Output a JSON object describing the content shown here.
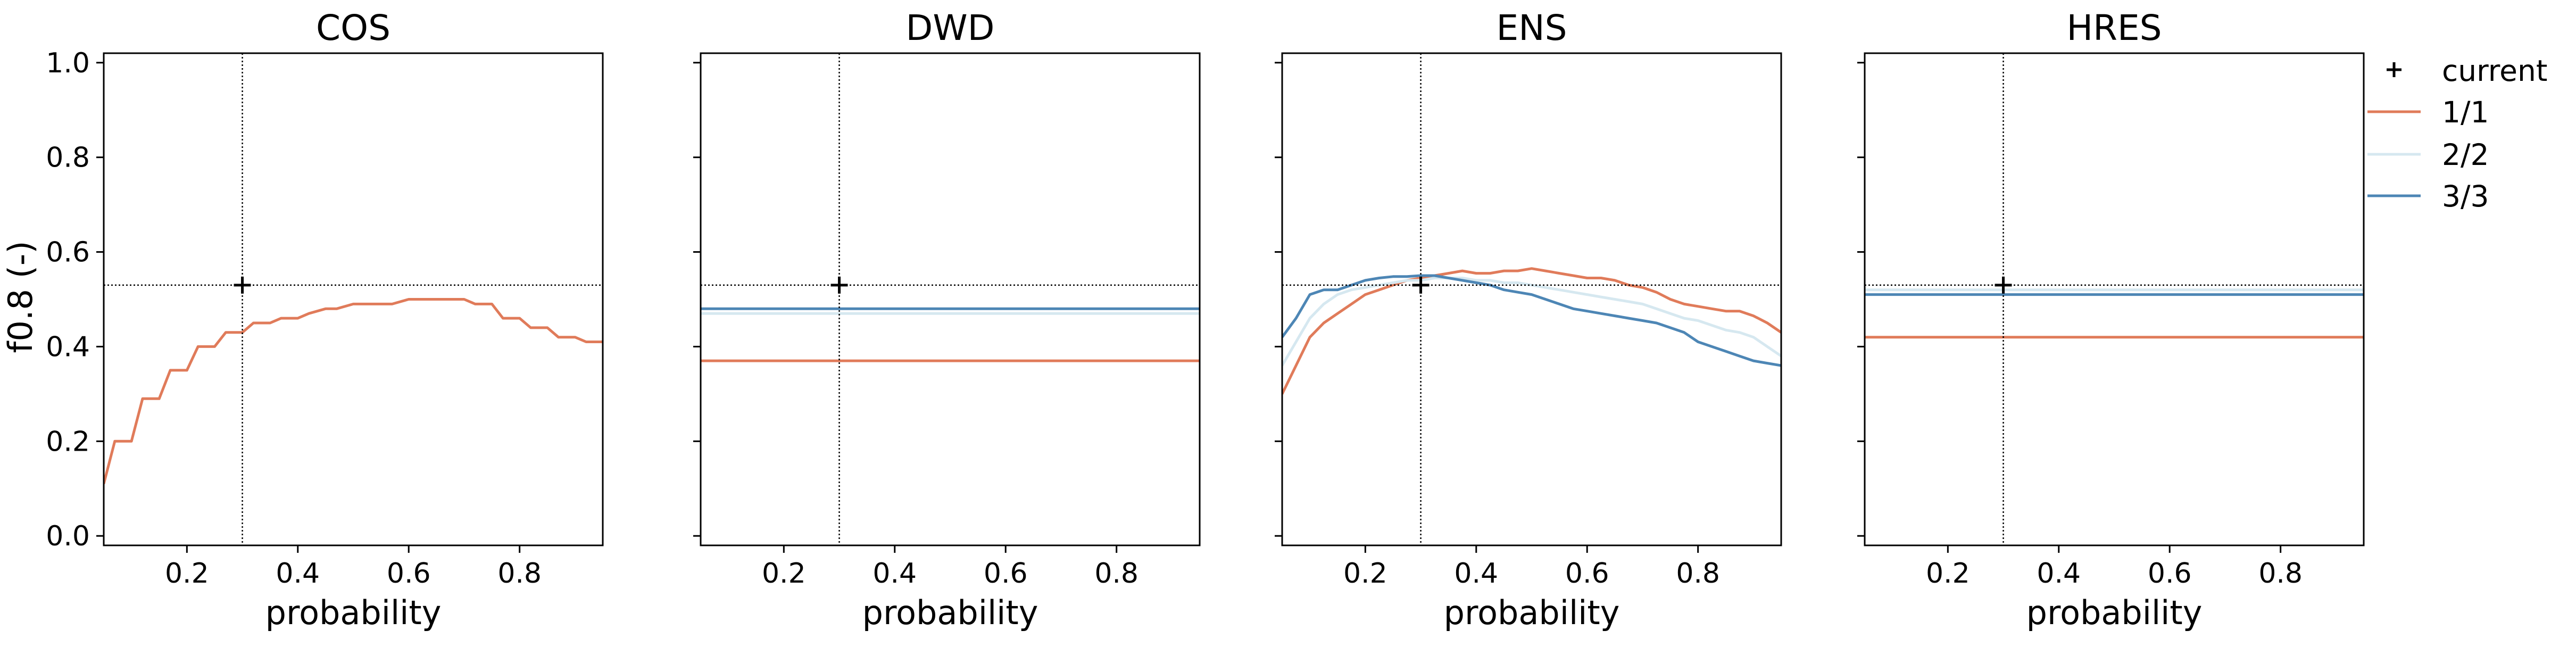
{
  "figure": {
    "ylabel": "f0.8 (-)",
    "xlabel": "probability",
    "legend": {
      "placement": "right-outside-top",
      "current_label": "current",
      "items": [
        {
          "label": "1/1",
          "color": "#e07b5a"
        },
        {
          "label": "2/2",
          "color": "#d6e8f0"
        },
        {
          "label": "3/3",
          "color": "#4d86b5"
        }
      ]
    }
  },
  "chart_data": [
    {
      "type": "line",
      "title": "COS",
      "xlabel": "probability",
      "ylabel": "f0.8 (-)",
      "xlim": [
        0.05,
        0.95
      ],
      "ylim": [
        -0.02,
        1.02
      ],
      "xticks": [
        "0.2",
        "0.4",
        "0.6",
        "0.8"
      ],
      "yticks": [
        "0.0",
        "0.2",
        "0.4",
        "0.6",
        "0.8",
        "1.0"
      ],
      "current": {
        "x": 0.3,
        "y": 0.53
      },
      "series": [
        {
          "name": "1/1",
          "color": "#e07b5a",
          "step": true,
          "x": [
            0.05,
            0.07,
            0.1,
            0.12,
            0.15,
            0.17,
            0.2,
            0.22,
            0.25,
            0.27,
            0.3,
            0.32,
            0.35,
            0.37,
            0.4,
            0.42,
            0.45,
            0.47,
            0.5,
            0.52,
            0.55,
            0.57,
            0.6,
            0.62,
            0.65,
            0.67,
            0.7,
            0.72,
            0.75,
            0.77,
            0.8,
            0.82,
            0.85,
            0.87,
            0.9,
            0.92,
            0.95
          ],
          "y": [
            0.11,
            0.2,
            0.2,
            0.29,
            0.29,
            0.35,
            0.35,
            0.4,
            0.4,
            0.43,
            0.43,
            0.45,
            0.45,
            0.46,
            0.46,
            0.47,
            0.48,
            0.48,
            0.49,
            0.49,
            0.49,
            0.49,
            0.5,
            0.5,
            0.5,
            0.5,
            0.5,
            0.49,
            0.49,
            0.46,
            0.46,
            0.44,
            0.44,
            0.42,
            0.42,
            0.41,
            0.41
          ]
        }
      ]
    },
    {
      "type": "line",
      "title": "DWD",
      "xlabel": "probability",
      "xlim": [
        0.05,
        0.95
      ],
      "ylim": [
        -0.02,
        1.02
      ],
      "xticks": [
        "0.2",
        "0.4",
        "0.6",
        "0.8"
      ],
      "current": {
        "x": 0.3,
        "y": 0.53
      },
      "series": [
        {
          "name": "1/1",
          "color": "#e07b5a",
          "x": [
            0.05,
            0.95
          ],
          "y": [
            0.37,
            0.37
          ]
        },
        {
          "name": "2/2",
          "color": "#d6e8f0",
          "x": [
            0.05,
            0.95
          ],
          "y": [
            0.47,
            0.47
          ]
        },
        {
          "name": "3/3",
          "color": "#4d86b5",
          "x": [
            0.05,
            0.95
          ],
          "y": [
            0.48,
            0.48
          ]
        }
      ]
    },
    {
      "type": "line",
      "title": "ENS",
      "xlabel": "probability",
      "xlim": [
        0.05,
        0.95
      ],
      "ylim": [
        -0.02,
        1.02
      ],
      "xticks": [
        "0.2",
        "0.4",
        "0.6",
        "0.8"
      ],
      "current": {
        "x": 0.3,
        "y": 0.53
      },
      "series": [
        {
          "name": "1/1",
          "color": "#e07b5a",
          "x": [
            0.05,
            0.075,
            0.1,
            0.125,
            0.15,
            0.175,
            0.2,
            0.225,
            0.25,
            0.275,
            0.3,
            0.325,
            0.35,
            0.375,
            0.4,
            0.425,
            0.45,
            0.475,
            0.5,
            0.525,
            0.55,
            0.575,
            0.6,
            0.625,
            0.65,
            0.675,
            0.7,
            0.725,
            0.75,
            0.775,
            0.8,
            0.825,
            0.85,
            0.875,
            0.9,
            0.925,
            0.95
          ],
          "y": [
            0.3,
            0.36,
            0.42,
            0.45,
            0.47,
            0.49,
            0.51,
            0.52,
            0.53,
            0.54,
            0.545,
            0.55,
            0.555,
            0.56,
            0.555,
            0.555,
            0.56,
            0.56,
            0.565,
            0.56,
            0.555,
            0.55,
            0.545,
            0.545,
            0.54,
            0.53,
            0.525,
            0.515,
            0.5,
            0.49,
            0.485,
            0.48,
            0.475,
            0.475,
            0.465,
            0.45,
            0.43
          ]
        },
        {
          "name": "2/2",
          "color": "#d6e8f0",
          "x": [
            0.05,
            0.075,
            0.1,
            0.125,
            0.15,
            0.175,
            0.2,
            0.225,
            0.25,
            0.275,
            0.3,
            0.325,
            0.35,
            0.375,
            0.4,
            0.425,
            0.45,
            0.475,
            0.5,
            0.525,
            0.55,
            0.575,
            0.6,
            0.625,
            0.65,
            0.675,
            0.7,
            0.725,
            0.75,
            0.775,
            0.8,
            0.825,
            0.85,
            0.875,
            0.9,
            0.925,
            0.95
          ],
          "y": [
            0.36,
            0.41,
            0.46,
            0.49,
            0.51,
            0.52,
            0.525,
            0.53,
            0.535,
            0.54,
            0.54,
            0.545,
            0.545,
            0.545,
            0.54,
            0.54,
            0.535,
            0.535,
            0.53,
            0.525,
            0.52,
            0.515,
            0.51,
            0.505,
            0.5,
            0.495,
            0.49,
            0.48,
            0.47,
            0.46,
            0.455,
            0.445,
            0.435,
            0.43,
            0.42,
            0.4,
            0.38
          ]
        },
        {
          "name": "3/3",
          "color": "#4d86b5",
          "x": [
            0.05,
            0.075,
            0.1,
            0.125,
            0.15,
            0.175,
            0.2,
            0.225,
            0.25,
            0.275,
            0.3,
            0.325,
            0.35,
            0.375,
            0.4,
            0.425,
            0.45,
            0.475,
            0.5,
            0.525,
            0.55,
            0.575,
            0.6,
            0.625,
            0.65,
            0.675,
            0.7,
            0.725,
            0.75,
            0.775,
            0.8,
            0.825,
            0.85,
            0.875,
            0.9,
            0.925,
            0.95
          ],
          "y": [
            0.42,
            0.46,
            0.51,
            0.52,
            0.52,
            0.53,
            0.54,
            0.545,
            0.548,
            0.548,
            0.55,
            0.55,
            0.545,
            0.54,
            0.535,
            0.53,
            0.52,
            0.515,
            0.51,
            0.5,
            0.49,
            0.48,
            0.475,
            0.47,
            0.465,
            0.46,
            0.455,
            0.45,
            0.44,
            0.43,
            0.41,
            0.4,
            0.39,
            0.38,
            0.37,
            0.365,
            0.36
          ]
        }
      ]
    },
    {
      "type": "line",
      "title": "HRES",
      "xlabel": "probability",
      "xlim": [
        0.05,
        0.95
      ],
      "ylim": [
        -0.02,
        1.02
      ],
      "xticks": [
        "0.2",
        "0.4",
        "0.6",
        "0.8"
      ],
      "current": {
        "x": 0.3,
        "y": 0.53
      },
      "series": [
        {
          "name": "1/1",
          "color": "#e07b5a",
          "x": [
            0.05,
            0.95
          ],
          "y": [
            0.42,
            0.42
          ]
        },
        {
          "name": "2/2",
          "color": "#d6e8f0",
          "x": [
            0.05,
            0.95
          ],
          "y": [
            0.52,
            0.52
          ]
        },
        {
          "name": "3/3",
          "color": "#4d86b5",
          "x": [
            0.05,
            0.95
          ],
          "y": [
            0.51,
            0.51
          ]
        }
      ]
    }
  ]
}
